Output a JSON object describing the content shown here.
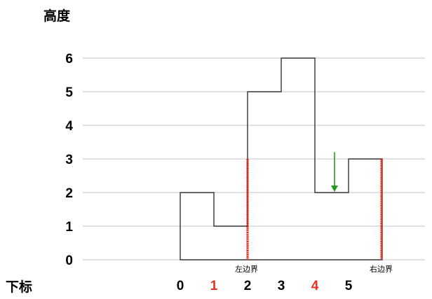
{
  "y_axis_title": "高度",
  "x_axis_title": "下标",
  "y_ticks": [
    "0",
    "1",
    "2",
    "3",
    "4",
    "5",
    "6"
  ],
  "bars": [
    {
      "index": "0",
      "height": 2,
      "highlight": false
    },
    {
      "index": "1",
      "height": 1,
      "highlight": true
    },
    {
      "index": "2",
      "height": 5,
      "highlight": false
    },
    {
      "index": "3",
      "height": 6,
      "highlight": false
    },
    {
      "index": "4",
      "height": 2,
      "highlight": true
    },
    {
      "index": "5",
      "height": 3,
      "highlight": false
    }
  ],
  "left_boundary": {
    "label": "左边界",
    "height": 3
  },
  "right_boundary": {
    "label": "右边界",
    "height": 3
  },
  "arrow": {
    "height_from": 3.2,
    "height_to": 2
  },
  "colors": {
    "gridline": "#c6c6c6",
    "bar_outline": "#333333",
    "boundary": "#e02a17",
    "highlight_index": "#e53322",
    "arrow": "#1f9b1a",
    "text": "#000000"
  }
}
